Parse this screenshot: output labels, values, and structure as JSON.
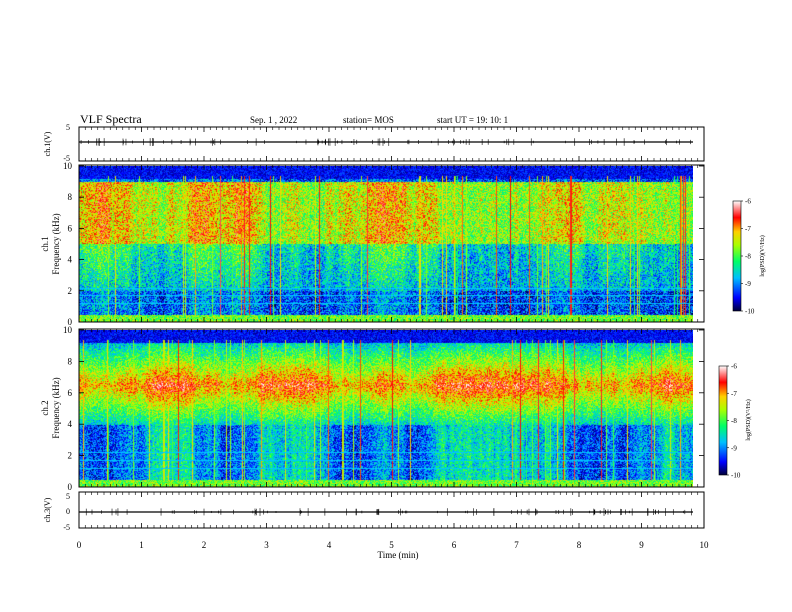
{
  "header": {
    "title": "VLF Spectra",
    "date": "Sep. 1 , 2022",
    "station": "station= MOS",
    "start": "start  UT =   19: 10: 1"
  },
  "colorbar": {
    "label": "log(PSD)(V²/Hz)",
    "ticks": [
      "-6",
      "-7",
      "-8",
      "-9",
      "-10"
    ]
  },
  "colors": {
    "axis": "#000000",
    "scale": [
      "#00008b",
      "#0000ff",
      "#00bfff",
      "#00ff7f",
      "#adff2f",
      "#ffff00",
      "#ff0000",
      "#ffffff"
    ]
  },
  "chart_data": [
    {
      "type": "line",
      "name": "ch1-voltage",
      "ylabel": "ch.1(V)",
      "ylim": [
        -5,
        5
      ],
      "yticks": [
        "5",
        "-5"
      ],
      "xlim": [
        0,
        10
      ],
      "series": [
        {
          "values_level": 0
        }
      ]
    },
    {
      "type": "heatmap",
      "name": "ch1-spectrogram",
      "ylabel": "ch.1\nFrequency (kHz)",
      "ylabel_lines": [
        "ch.1",
        "Frequency (kHz)"
      ],
      "ylim": [
        0,
        10
      ],
      "yticks": [
        "0",
        "2",
        "4",
        "6",
        "8",
        "10"
      ],
      "xlim": [
        0,
        9.83
      ],
      "zlim": [
        -10,
        -6
      ],
      "profile": "broadband",
      "description_values": {
        "peak_band_khz": [
          5,
          9
        ],
        "noise_floor": -9.6
      }
    },
    {
      "type": "heatmap",
      "name": "ch2-spectrogram",
      "ylabel_lines": [
        "ch.2",
        "Frequency (kHz)"
      ],
      "ylim": [
        0,
        10
      ],
      "yticks": [
        "0",
        "2",
        "4",
        "6",
        "8",
        "10"
      ],
      "xlim": [
        0,
        9.83
      ],
      "zlim": [
        -10,
        -6
      ],
      "profile": "midband",
      "description_values": {
        "peak_band_khz": [
          5.5,
          7.5
        ],
        "noise_floor": -9.6
      }
    },
    {
      "type": "line",
      "name": "ch3-voltage",
      "ylabel": "ch.3(V)",
      "ylim": [
        -5,
        5
      ],
      "yticks": [
        "5",
        "0",
        "-5"
      ],
      "xlim": [
        0,
        10
      ],
      "series": [
        {
          "values_level": 0
        }
      ]
    }
  ],
  "xaxis": {
    "label": "Time (min)",
    "ticks": [
      "0",
      "1",
      "2",
      "3",
      "4",
      "5",
      "6",
      "7",
      "8",
      "9",
      "10"
    ],
    "range": [
      0,
      10
    ]
  }
}
